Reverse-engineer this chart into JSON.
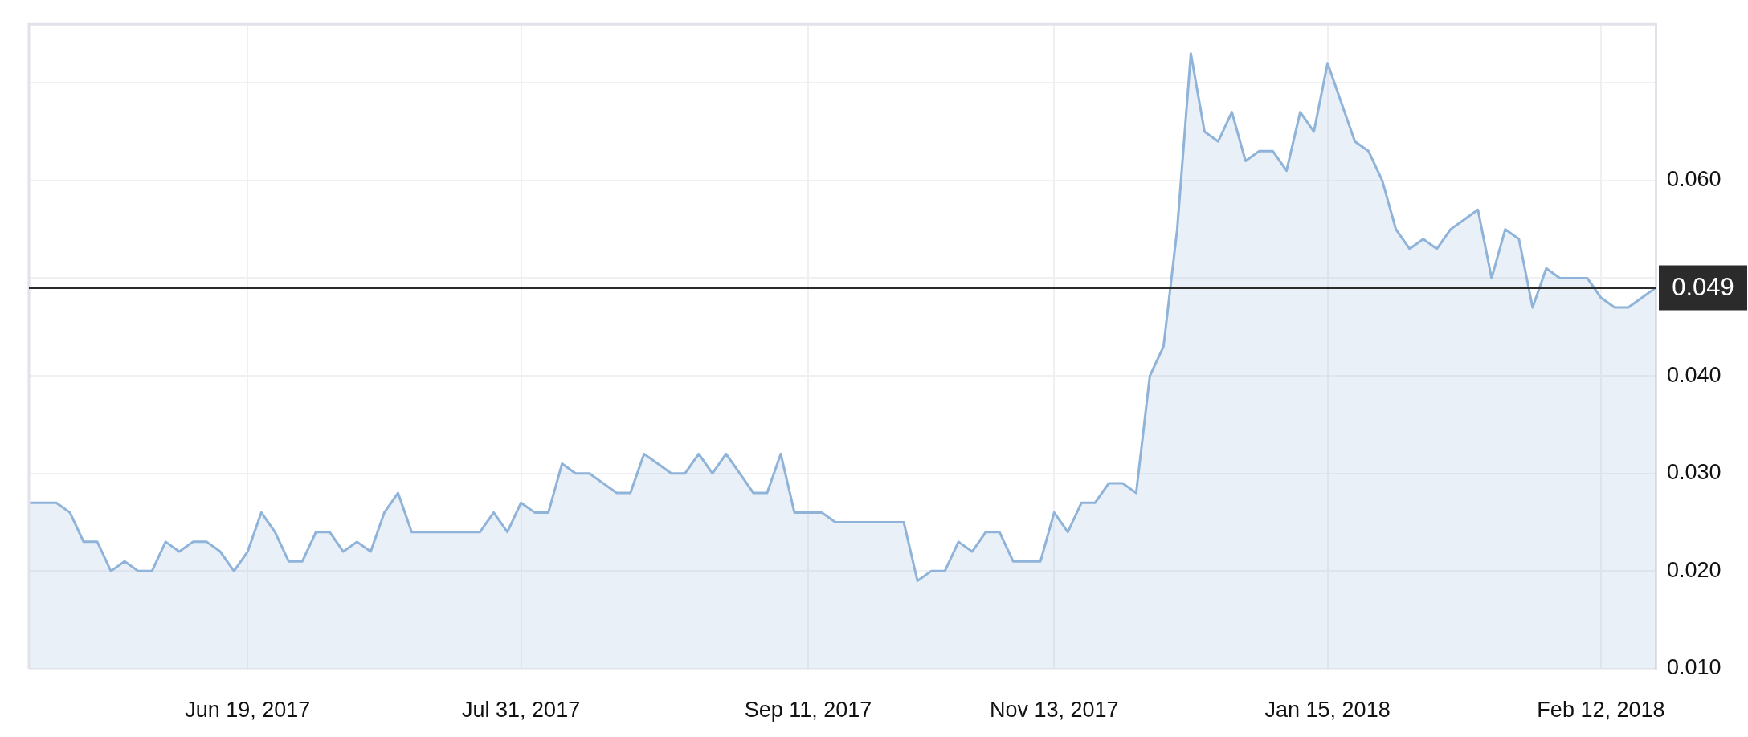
{
  "chart_data": {
    "type": "area",
    "categories": [
      null,
      null,
      null,
      null,
      null,
      null,
      null,
      null,
      null,
      null,
      null,
      null,
      null,
      null,
      null,
      null,
      "Jun 19, 2017",
      null,
      null,
      null,
      null,
      null,
      null,
      null,
      null,
      null,
      null,
      null,
      null,
      null,
      null,
      null,
      null,
      null,
      null,
      null,
      "Jul 31, 2017",
      null,
      null,
      null,
      null,
      null,
      null,
      null,
      null,
      null,
      null,
      null,
      null,
      null,
      null,
      null,
      null,
      null,
      null,
      null,
      null,
      "Sep 11, 2017",
      null,
      null,
      null,
      null,
      null,
      null,
      null,
      null,
      null,
      null,
      null,
      null,
      null,
      null,
      null,
      null,
      null,
      "Nov 13, 2017",
      null,
      null,
      null,
      null,
      null,
      null,
      null,
      null,
      null,
      null,
      null,
      null,
      null,
      null,
      null,
      null,
      null,
      null,
      null,
      "Jan 15, 2018",
      null,
      null,
      null,
      null,
      null,
      null,
      null,
      null,
      null,
      null,
      null,
      null,
      null,
      null,
      null,
      null,
      null,
      null,
      null,
      "Feb 12, 2018",
      null,
      null,
      null,
      null
    ],
    "series": [
      {
        "color": "#8fb3d9",
        "values": [
          0.027,
          0.027,
          0.027,
          0.026,
          0.023,
          0.023,
          0.02,
          0.021,
          0.02,
          0.02,
          0.023,
          0.022,
          0.023,
          0.023,
          0.022,
          0.02,
          0.022,
          0.026,
          0.024,
          0.021,
          0.021,
          0.024,
          0.024,
          0.022,
          0.023,
          0.022,
          0.026,
          0.028,
          0.024,
          0.024,
          0.024,
          0.024,
          0.024,
          0.024,
          0.026,
          0.024,
          0.027,
          0.026,
          0.026,
          0.031,
          0.03,
          0.03,
          0.029,
          0.028,
          0.028,
          0.032,
          0.031,
          0.03,
          0.03,
          0.032,
          0.03,
          0.032,
          0.03,
          0.028,
          0.028,
          0.032,
          0.026,
          0.026,
          0.026,
          0.025,
          0.025,
          0.025,
          0.025,
          0.025,
          0.025,
          0.019,
          0.02,
          0.02,
          0.023,
          0.022,
          0.024,
          0.024,
          0.021,
          0.021,
          0.021,
          0.026,
          0.024,
          0.027,
          0.027,
          0.029,
          0.029,
          0.028,
          0.04,
          0.043,
          0.055,
          0.073,
          0.065,
          0.064,
          0.067,
          0.062,
          0.063,
          0.063,
          0.061,
          0.067,
          0.065,
          0.072,
          0.068,
          0.064,
          0.063,
          0.06,
          0.055,
          0.053,
          0.054,
          0.053,
          0.055,
          0.056,
          0.057,
          0.05,
          0.055,
          0.054,
          0.047,
          0.051,
          0.05,
          0.05,
          0.05,
          0.048,
          0.047,
          0.047,
          0.048,
          0.049
        ]
      }
    ],
    "ylim": [
      0.01,
      0.076
    ],
    "yticks": [
      {
        "value": 0.01,
        "label": "0.010"
      },
      {
        "value": 0.02,
        "label": "0.020"
      },
      {
        "value": 0.03,
        "label": "0.030"
      },
      {
        "value": 0.04,
        "label": "0.040"
      },
      {
        "value": 0.05,
        "label": null
      },
      {
        "value": 0.06,
        "label": "0.060"
      },
      {
        "value": 0.07,
        "label": null
      }
    ],
    "grid": true,
    "marker": "none",
    "ref_lines": [
      {
        "axis": "y",
        "value": 0.049,
        "label": "0.049",
        "color": "#2b2b2b"
      }
    ]
  }
}
